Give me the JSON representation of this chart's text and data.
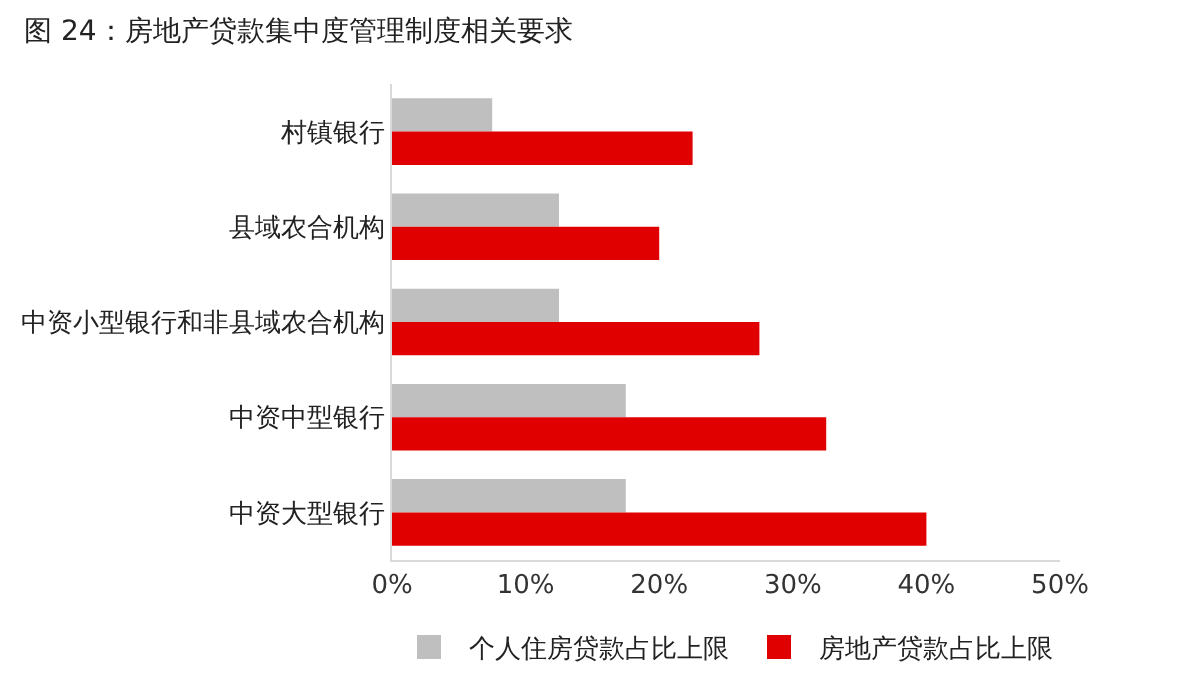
{
  "chart_data": {
    "type": "bar",
    "orientation": "horizontal",
    "title": "图 24：房地产贷款集中度管理制度相关要求",
    "categories": [
      "村镇银行",
      "县域农合机构",
      "中资小型银行和非县域农合机构",
      "中资中型银行",
      "中资大型银行"
    ],
    "series": [
      {
        "name": "个人住房贷款占比上限",
        "color": "#bfbfbf",
        "values": [
          7.5,
          12.5,
          12.5,
          17.5,
          17.5
        ]
      },
      {
        "name": "房地产贷款占比上限",
        "color": "#e00000",
        "values": [
          22.5,
          20,
          27.5,
          32.5,
          40
        ]
      }
    ],
    "xlim": [
      0,
      50
    ],
    "xticks": [
      {
        "value": 0,
        "label": "0%"
      },
      {
        "value": 10,
        "label": "10%"
      },
      {
        "value": 20,
        "label": "20%"
      },
      {
        "value": 30,
        "label": "30%"
      },
      {
        "value": 40,
        "label": "40%"
      },
      {
        "value": 50,
        "label": "50%"
      }
    ],
    "grid": false,
    "legend": "bottom"
  }
}
